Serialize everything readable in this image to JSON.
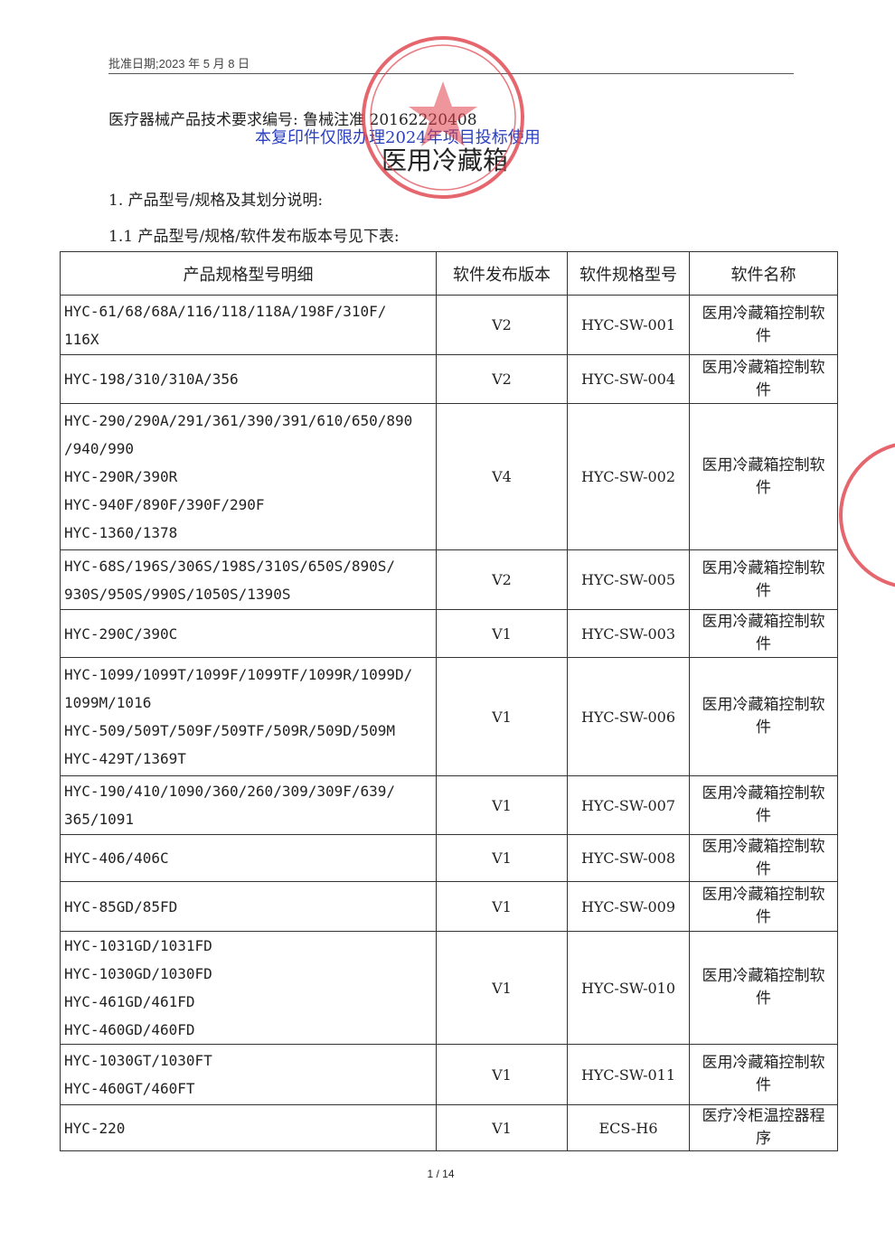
{
  "header": {
    "approval_date": "批准日期;2023 年 5 月 8 日"
  },
  "document": {
    "standard_number": "医疗器械产品技术要求编号: 鲁械注准 20162220408",
    "watermark": "本复印件仅限办理2024年项目投标使用",
    "title": "医用冷藏箱",
    "section_1": "1. 产品型号/规格及其划分说明:",
    "section_1_1": "1.1 产品型号/规格/软件发布版本号见下表:"
  },
  "table": {
    "columns": [
      "产品规格型号明细",
      "软件发布版本",
      "软件规格型号",
      "软件名称"
    ],
    "rows": [
      [
        [
          "HYC-61/68/68A/116/118/118A/198F/310F/",
          "116X"
        ],
        "V2",
        "HYC-SW-001",
        "医用冷藏箱控制软件"
      ],
      [
        [
          "HYC-198/310/310A/356"
        ],
        "V2",
        "HYC-SW-004",
        "医用冷藏箱控制软件"
      ],
      [
        [
          "HYC-290/290A/291/361/390/391/610/650/890",
          "/940/990",
          "HYC-290R/390R",
          "HYC-940F/890F/390F/290F",
          "HYC-1360/1378"
        ],
        "V4",
        "HYC-SW-002",
        "医用冷藏箱控制软件"
      ],
      [
        [
          "HYC-68S/196S/306S/198S/310S/650S/890S/",
          "930S/950S/990S/1050S/1390S"
        ],
        "V2",
        "HYC-SW-005",
        "医用冷藏箱控制软件"
      ],
      [
        [
          "HYC-290C/390C"
        ],
        "V1",
        "HYC-SW-003",
        "医用冷藏箱控制软件"
      ],
      [
        [
          "HYC-1099/1099T/1099F/1099TF/1099R/1099D/",
          "1099M/1016",
          "HYC-509/509T/509F/509TF/509R/509D/509M",
          "HYC-429T/1369T"
        ],
        "V1",
        "HYC-SW-006",
        "医用冷藏箱控制软件"
      ],
      [
        [
          "HYC-190/410/1090/360/260/309/309F/639/",
          "365/1091"
        ],
        "V1",
        "HYC-SW-007",
        "医用冷藏箱控制软件"
      ],
      [
        [
          "HYC-406/406C"
        ],
        "V1",
        "HYC-SW-008",
        "医用冷藏箱控制软件"
      ],
      [
        [
          "HYC-85GD/85FD"
        ],
        "V1",
        "HYC-SW-009",
        "医用冷藏箱控制软件"
      ],
      [
        [
          "HYC-1031GD/1031FD",
          "HYC-1030GD/1030FD",
          "HYC-461GD/461FD",
          "HYC-460GD/460FD"
        ],
        "V1",
        "HYC-SW-010",
        "医用冷藏箱控制软件"
      ],
      [
        [
          "HYC-1030GT/1030FT",
          "HYC-460GT/460FT"
        ],
        "V1",
        "HYC-SW-011",
        "医用冷藏箱控制软件"
      ],
      [
        [
          "HYC-220"
        ],
        "V1",
        "ECS-H6",
        "医疗冷柜温控器程序"
      ]
    ]
  },
  "footer": {
    "page": "1 / 14"
  }
}
